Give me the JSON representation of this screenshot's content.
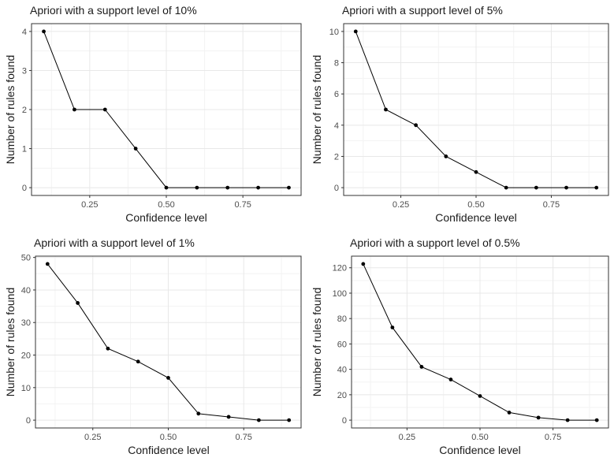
{
  "style": {
    "background": "#ffffff",
    "series_color": "#000000",
    "point_color": "#000000",
    "grid_major_color": "#e8e8e8",
    "grid_minor_color": "#f3f3f3",
    "panel_border_color": "#333333",
    "tick_color": "#333333",
    "tick_label_color": "#4d4d4d",
    "title_color": "#1a1a1a"
  },
  "chart_data": [
    {
      "type": "line",
      "title": "Apriori with a support level of 10%",
      "xlabel": "Confidence level",
      "ylabel": "Number of rules found",
      "x": [
        0.1,
        0.2,
        0.3,
        0.4,
        0.5,
        0.6,
        0.7,
        0.8,
        0.9
      ],
      "values": [
        4,
        2,
        2,
        1,
        0,
        0,
        0,
        0,
        0
      ],
      "xlim": [
        0.06,
        0.94
      ],
      "ylim": [
        -0.2,
        4.2
      ],
      "x_major_ticks": [
        0.25,
        0.5,
        0.75
      ],
      "x_tick_labels": [
        "0.25",
        "0.50",
        "0.75"
      ],
      "x_minor_ticks": [
        0.125,
        0.375,
        0.625,
        0.875
      ],
      "y_major_ticks": [
        0,
        1,
        2,
        3,
        4
      ],
      "y_tick_labels": [
        "0",
        "1",
        "2",
        "3",
        "4"
      ],
      "y_minor_ticks": [
        0.5,
        1.5,
        2.5,
        3.5
      ],
      "grid": true,
      "legend": "none"
    },
    {
      "type": "line",
      "title": "Apriori with a support level of 5%",
      "xlabel": "Confidence level",
      "ylabel": "Number of rules found",
      "x": [
        0.1,
        0.2,
        0.3,
        0.4,
        0.5,
        0.6,
        0.7,
        0.8,
        0.9
      ],
      "values": [
        10,
        5,
        4,
        2,
        1,
        0,
        0,
        0,
        0
      ],
      "xlim": [
        0.06,
        0.94
      ],
      "ylim": [
        -0.5,
        10.5
      ],
      "x_major_ticks": [
        0.25,
        0.5,
        0.75
      ],
      "x_tick_labels": [
        "0.25",
        "0.50",
        "0.75"
      ],
      "x_minor_ticks": [
        0.125,
        0.375,
        0.625,
        0.875
      ],
      "y_major_ticks": [
        0,
        2,
        4,
        6,
        8,
        10
      ],
      "y_tick_labels": [
        "0",
        "2",
        "4",
        "6",
        "8",
        "10"
      ],
      "y_minor_ticks": [
        1,
        3,
        5,
        7,
        9
      ],
      "grid": true,
      "legend": "none"
    },
    {
      "type": "line",
      "title": "Apriori with a support level of 1%",
      "xlabel": "Confidence level",
      "ylabel": "Number of rules found",
      "x": [
        0.1,
        0.2,
        0.3,
        0.4,
        0.5,
        0.6,
        0.7,
        0.8,
        0.9
      ],
      "values": [
        48,
        36,
        22,
        18,
        13,
        2,
        1,
        0,
        0
      ],
      "xlim": [
        0.06,
        0.94
      ],
      "ylim": [
        -2.4,
        50.4
      ],
      "x_major_ticks": [
        0.25,
        0.5,
        0.75
      ],
      "x_tick_labels": [
        "0.25",
        "0.50",
        "0.75"
      ],
      "x_minor_ticks": [
        0.125,
        0.375,
        0.625,
        0.875
      ],
      "y_major_ticks": [
        0,
        10,
        20,
        30,
        40,
        50
      ],
      "y_tick_labels": [
        "0",
        "10",
        "20",
        "30",
        "40",
        "50"
      ],
      "y_minor_ticks": [
        5,
        15,
        25,
        35,
        45
      ],
      "grid": true,
      "legend": "none"
    },
    {
      "type": "line",
      "title": "Apriori with a support level of 0.5%",
      "xlabel": "Confidence level",
      "ylabel": "Number of rules found",
      "x": [
        0.1,
        0.2,
        0.3,
        0.4,
        0.5,
        0.6,
        0.7,
        0.8,
        0.9
      ],
      "values": [
        123,
        73,
        42,
        32,
        19,
        6,
        2,
        0,
        0
      ],
      "xlim": [
        0.06,
        0.94
      ],
      "ylim": [
        -6.15,
        129.15
      ],
      "x_major_ticks": [
        0.25,
        0.5,
        0.75
      ],
      "x_tick_labels": [
        "0.25",
        "0.50",
        "0.75"
      ],
      "x_minor_ticks": [
        0.125,
        0.375,
        0.625,
        0.875
      ],
      "y_major_ticks": [
        0,
        20,
        40,
        60,
        80,
        100,
        120
      ],
      "y_tick_labels": [
        "0",
        "20",
        "40",
        "60",
        "80",
        "100",
        "120"
      ],
      "y_minor_ticks": [
        10,
        30,
        50,
        70,
        90,
        110
      ],
      "grid": true,
      "legend": "none"
    }
  ]
}
